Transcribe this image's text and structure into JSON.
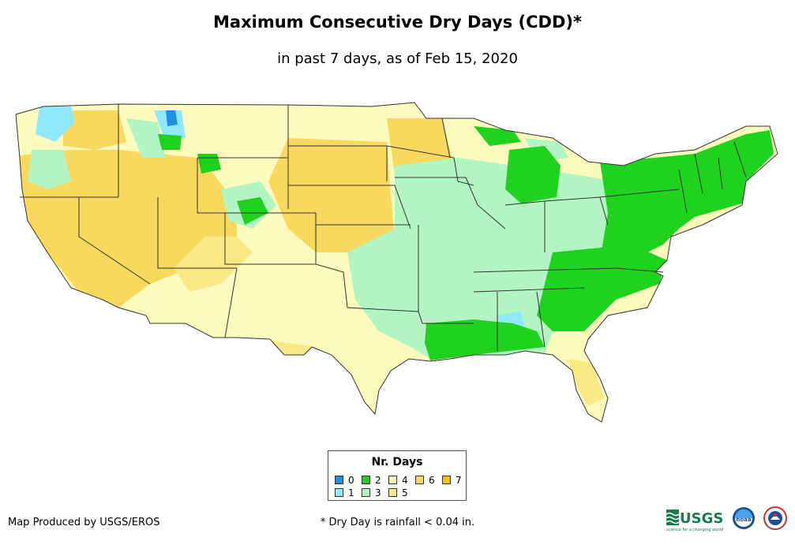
{
  "title": "Maximum Consecutive Dry Days (CDD)*",
  "subtitle": "in past 7 days, as of Feb 15, 2020",
  "legend": {
    "title": "Nr. Days",
    "items": [
      {
        "label": "0",
        "color": "#1e90e6"
      },
      {
        "label": "1",
        "color": "#8fe8ff"
      },
      {
        "label": "2",
        "color": "#1ed21e"
      },
      {
        "label": "3",
        "color": "#b2f5c3"
      },
      {
        "label": "4",
        "color": "#fdfabd"
      },
      {
        "label": "5",
        "color": "#fbe986"
      },
      {
        "label": "6",
        "color": "#f8d85d"
      },
      {
        "label": "7",
        "color": "#f5c400"
      }
    ]
  },
  "credit": "Map Produced by USGS/EROS",
  "footnote": "* Dry Day is rainfall < 0.04 in.",
  "logos": {
    "usgs": "USGS",
    "usgs_tagline": "science for a changing world",
    "noaa": "noaa"
  }
}
